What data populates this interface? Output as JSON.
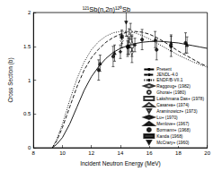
{
  "chart_data": {
    "type": "line",
    "title": "¹²¹Sb(n,2n)¹²⁰Sb",
    "x_label": "Incident Neutron Energy (MeV)",
    "y_label": "Cross Section (b)",
    "xlim": [
      8,
      20
    ],
    "xticks": [
      8,
      10,
      12,
      14,
      16,
      18,
      20
    ],
    "ylim": [
      0,
      2
    ],
    "yticks": [
      0,
      0.5,
      1,
      1.5,
      2
    ],
    "grid": false,
    "legend": "lower right",
    "color": "#000000",
    "series": [
      {
        "name": "Present",
        "type": "line",
        "line_style": "solid",
        "x": [
          9.3,
          9.6,
          10,
          10.5,
          11,
          11.5,
          12,
          12.5,
          13,
          13.5,
          14,
          14.5,
          15,
          15.5,
          16,
          16.5,
          17,
          17.5,
          18,
          18.5,
          19,
          19.5,
          20
        ],
        "values": [
          0,
          0.05,
          0.15,
          0.35,
          0.6,
          0.85,
          1.05,
          1.2,
          1.32,
          1.41,
          1.47,
          1.51,
          1.54,
          1.56,
          1.57,
          1.575,
          1.57,
          1.56,
          1.55,
          1.53,
          1.51,
          1.49,
          1.47
        ]
      },
      {
        "name": "JENDL-4.0",
        "type": "line",
        "line_style": "dashed",
        "x": [
          9.3,
          9.6,
          10,
          10.5,
          11,
          11.5,
          12,
          12.5,
          13,
          13.5,
          14,
          14.5,
          15,
          15.5,
          16,
          16.5,
          17,
          17.5,
          18,
          18.5,
          19,
          19.5,
          20
        ],
        "values": [
          0,
          0.1,
          0.3,
          0.6,
          0.9,
          1.15,
          1.33,
          1.46,
          1.56,
          1.63,
          1.68,
          1.71,
          1.72,
          1.71,
          1.68,
          1.63,
          1.57,
          1.5,
          1.43,
          1.37,
          1.31,
          1.25,
          1.2
        ]
      },
      {
        "name": "ENDF/B-VII.1",
        "type": "line",
        "line_style": "dotted",
        "x": [
          9.3,
          9.6,
          10,
          10.5,
          11,
          11.5,
          12,
          12.5,
          13,
          13.5,
          14,
          14.5,
          15,
          15.5,
          16,
          16.5,
          17,
          17.5,
          18,
          18.5,
          19,
          19.5,
          20
        ],
        "values": [
          0,
          0.12,
          0.35,
          0.7,
          1.02,
          1.27,
          1.45,
          1.57,
          1.65,
          1.7,
          1.72,
          1.72,
          1.7,
          1.66,
          1.61,
          1.55,
          1.49,
          1.43,
          1.37,
          1.32,
          1.27,
          1.23,
          1.19
        ]
      },
      {
        "name": "Raggoug+ (1982)",
        "type": "scatter",
        "marker": "open_diamond",
        "x": [
          14.1,
          14.6
        ],
        "values": [
          1.58,
          1.66
        ],
        "errors": [
          0.1,
          0.1
        ]
      },
      {
        "name": "Ghorai+ (1980)",
        "type": "scatter",
        "marker": "open_circle",
        "x": [
          14.7
        ],
        "values": [
          1.72
        ],
        "errors": [
          0.12
        ]
      },
      {
        "name": "Lakshmana Das+ (1978)",
        "type": "scatter",
        "marker": "open_square",
        "x": [
          14.8
        ],
        "values": [
          1.5
        ],
        "errors": [
          0.15
        ]
      },
      {
        "name": "Casarea+ (1974)",
        "type": "scatter",
        "marker": "open_triangle",
        "x": [
          14.8
        ],
        "values": [
          1.55
        ],
        "errors": [
          0.12
        ]
      },
      {
        "name": "Araminowicz+ (1973)",
        "type": "scatter",
        "marker": "open_inverted_triangle",
        "x": [
          14.8
        ],
        "values": [
          1.4
        ],
        "errors": [
          0.14
        ]
      },
      {
        "name": "Lu+ (1970)",
        "type": "scatter",
        "marker": "diamond",
        "x": [
          14.0,
          14.5,
          15.0
        ],
        "values": [
          1.42,
          1.48,
          1.52
        ],
        "errors": [
          0.1,
          0.1,
          0.1
        ]
      },
      {
        "name": "Menlove+ (1967)",
        "type": "scatter",
        "marker": "triangle",
        "x": [
          12.6,
          13.6,
          14.6,
          16.4,
          17.5,
          18.6
        ],
        "values": [
          1.25,
          1.4,
          1.5,
          1.6,
          1.55,
          1.52
        ],
        "errors": [
          0.12,
          0.12,
          0.12,
          0.12,
          0.12,
          0.12
        ]
      },
      {
        "name": "Bormann+ (1968)",
        "type": "scatter",
        "marker": "circle",
        "x": [
          12.5,
          13.5,
          14.5,
          15.5,
          16.5,
          17.5,
          18.5
        ],
        "values": [
          1.15,
          1.35,
          1.5,
          1.6,
          1.45,
          1.5,
          1.55
        ],
        "errors": [
          0.15,
          0.15,
          0.15,
          0.15,
          0.15,
          0.15,
          0.15
        ]
      },
      {
        "name": "Kanda (1968)",
        "type": "scatter",
        "marker": "square",
        "x": [
          14.1
        ],
        "values": [
          1.64
        ],
        "errors": [
          0.1
        ]
      },
      {
        "name": "McCrary+ (1960)",
        "type": "scatter",
        "marker": "inverted_triangle",
        "x": [
          14.4
        ],
        "values": [
          1.85
        ],
        "errors": [
          0.2
        ]
      }
    ]
  }
}
